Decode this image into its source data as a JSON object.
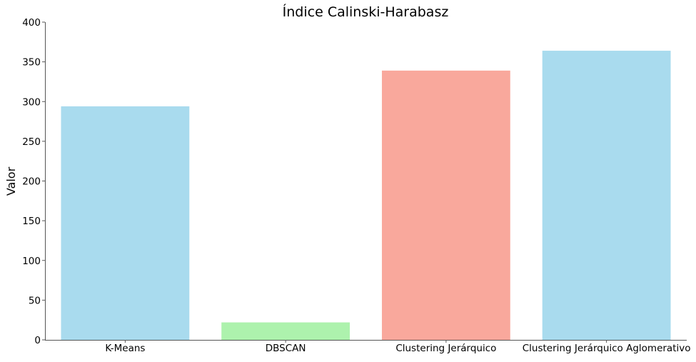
{
  "chart_data": {
    "type": "bar",
    "title": "Índice Calinski-Harabasz",
    "xlabel": "",
    "ylabel": "Valor",
    "categories": [
      "K-Means",
      "DBSCAN",
      "Clustering Jerárquico",
      "Clustering Jerárquico Aglomerativo"
    ],
    "values": [
      294,
      22,
      339,
      364
    ],
    "colors": [
      "#a9dbee",
      "#adf2ad",
      "#f9a89c",
      "#a9dbee"
    ],
    "ylim": [
      0,
      400
    ],
    "yticks": [
      0,
      50,
      100,
      150,
      200,
      250,
      300,
      350,
      400
    ],
    "grid": false,
    "legend": "none"
  }
}
